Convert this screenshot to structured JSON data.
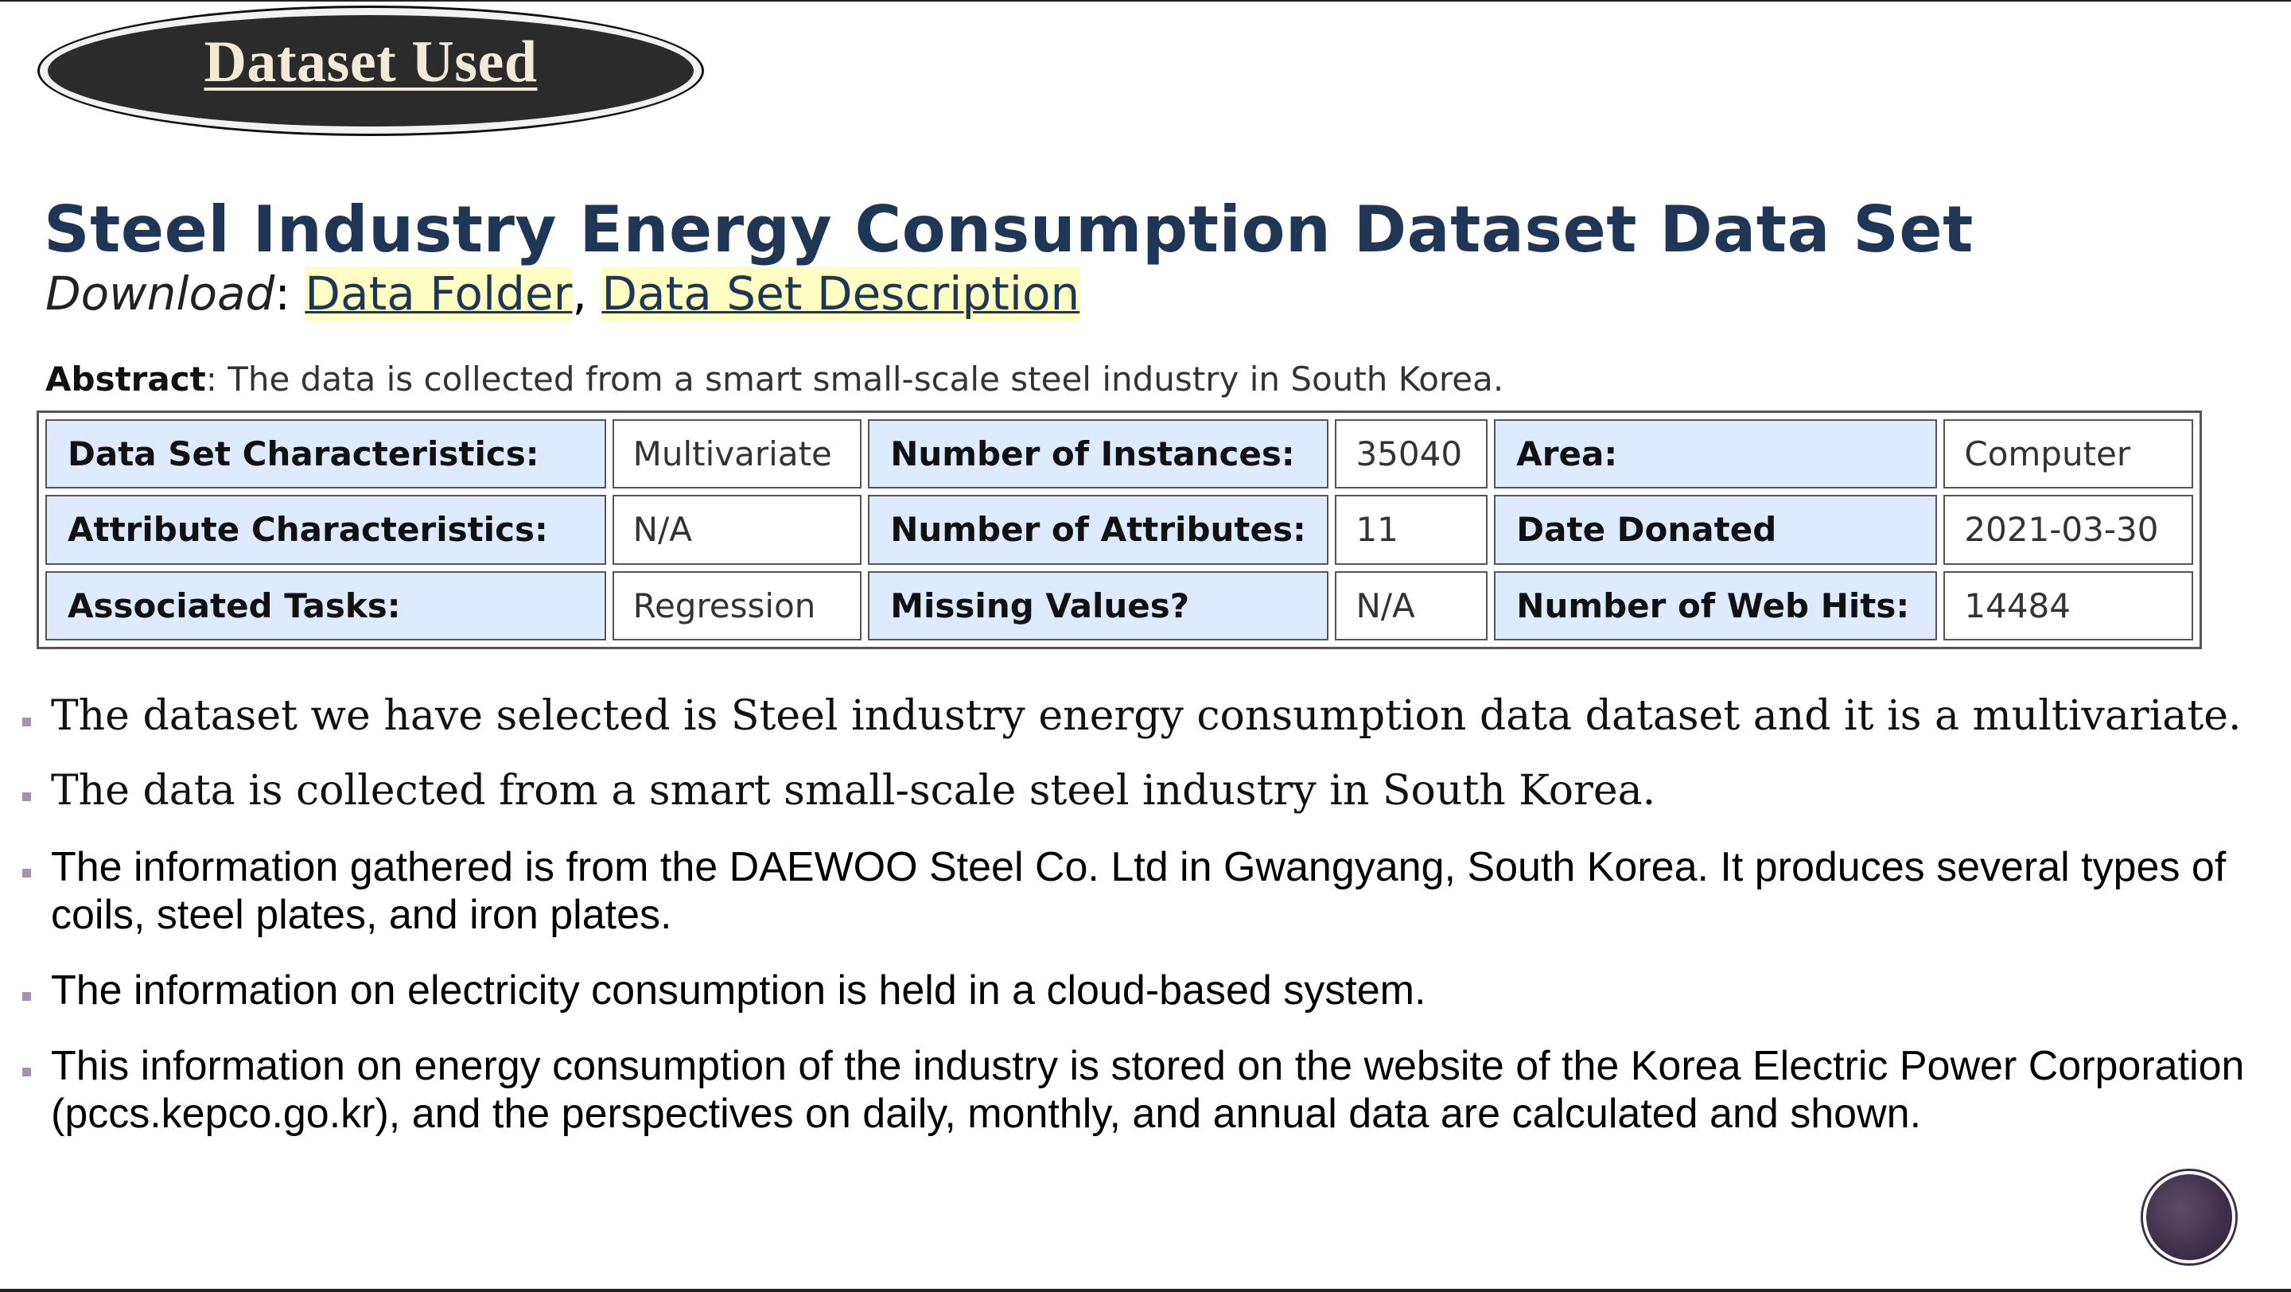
{
  "badge": {
    "title": "Dataset Used"
  },
  "heading": {
    "title": "Steel Industry Energy Consumption Dataset Data Set",
    "download_label": "Download",
    "download_sep": ":",
    "links": [
      "Data Folder",
      "Data Set Description"
    ],
    "link_sep": ","
  },
  "abstract": {
    "label": "Abstract",
    "text": ": The data is collected from a smart small-scale steel industry in South Korea."
  },
  "table": {
    "rows": [
      [
        "Data Set Characteristics:",
        "Multivariate",
        "Number of Instances:",
        "35040",
        "Area:",
        "Computer"
      ],
      [
        "Attribute Characteristics:",
        "N/A",
        "Number of Attributes:",
        "11",
        "Date Donated",
        "2021-03-30"
      ],
      [
        "Associated Tasks:",
        "Regression",
        "Missing Values?",
        "N/A",
        "Number of Web Hits:",
        "14484"
      ]
    ]
  },
  "bullets": [
    "The dataset we have selected is Steel industry energy consumption data dataset and it is a multivariate.",
    "The data is collected from a smart small-scale steel industry in South Korea.",
    "The information gathered is from the DAEWOO Steel Co. Ltd in Gwangyang, South Korea. It produces several types of coils, steel plates, and iron plates.",
    "The information on electricity consumption is held in a cloud-based system.",
    "This information on energy consumption of the industry is stored on the website of the Korea Electric Power Corporation (pccs.kepco.go.kr), and the perspectives on daily, monthly, and annual data are calculated and shown."
  ],
  "colors": {
    "title": "#1f3656",
    "label_cell": "#deeaff",
    "link_highlight": "#ffffc4",
    "badge_fill": "#2b2b2b",
    "bullet_marker": "#a393ac",
    "corner_circle": "#3e3049"
  }
}
